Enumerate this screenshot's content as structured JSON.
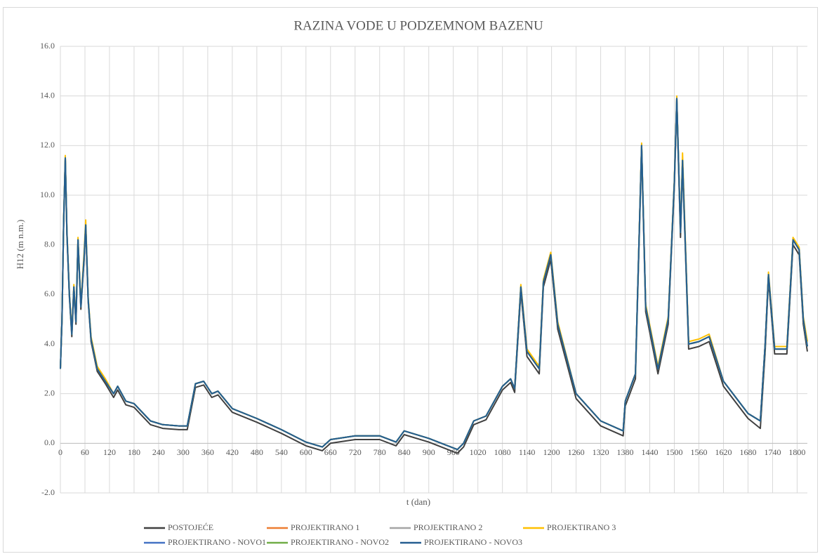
{
  "chart_data": {
    "type": "line",
    "title": "RAZINA VODE U PODZEMNOM BAZENU",
    "x_label": "t (dan)",
    "y_label": "H12 (m n.m.)",
    "xlim": [
      0,
      1825
    ],
    "ylim": [
      -2,
      16
    ],
    "xticks": [
      0,
      60,
      120,
      180,
      240,
      300,
      360,
      420,
      480,
      540,
      600,
      660,
      720,
      780,
      840,
      900,
      960,
      1020,
      1080,
      1140,
      1200,
      1260,
      1320,
      1380,
      1440,
      1500,
      1560,
      1620,
      1680,
      1740,
      1800
    ],
    "yticks": [
      {
        "value": -2,
        "label": "-2.0"
      },
      {
        "value": 0,
        "label": "0.0"
      },
      {
        "value": 2,
        "label": "2.0"
      },
      {
        "value": 4,
        "label": "4.0"
      },
      {
        "value": 6,
        "label": "6.0"
      },
      {
        "value": 8,
        "label": "8.0"
      },
      {
        "value": 10,
        "label": "10.0"
      },
      {
        "value": 12,
        "label": "12.0"
      },
      {
        "value": 14,
        "label": "14.0"
      },
      {
        "value": 16,
        "label": "16.0"
      }
    ],
    "grid": true,
    "legend": "bottom",
    "x": [
      0,
      4,
      8,
      12,
      16,
      22,
      28,
      33,
      38,
      43,
      50,
      58,
      62,
      68,
      75,
      90,
      110,
      130,
      140,
      160,
      180,
      220,
      250,
      290,
      310,
      330,
      350,
      370,
      385,
      420,
      480,
      540,
      600,
      640,
      660,
      720,
      780,
      820,
      840,
      900,
      970,
      985,
      1010,
      1040,
      1080,
      1100,
      1110,
      1125,
      1140,
      1170,
      1180,
      1198,
      1215,
      1260,
      1320,
      1375,
      1380,
      1405,
      1420,
      1430,
      1460,
      1485,
      1500,
      1506,
      1515,
      1520,
      1535,
      1560,
      1585,
      1620,
      1680,
      1710,
      1722,
      1730,
      1745,
      1775,
      1790,
      1805,
      1815,
      1825
    ],
    "series": [
      {
        "name": "POSTOJEĆE",
        "color": "#404040",
        "values": [
          3.0,
          4.9,
          8.9,
          11.4,
          8.4,
          5.9,
          4.3,
          6.2,
          4.8,
          8.1,
          5.4,
          7.4,
          8.7,
          5.7,
          4.1,
          2.9,
          2.4,
          1.85,
          2.15,
          1.55,
          1.45,
          0.75,
          0.6,
          0.55,
          0.55,
          2.25,
          2.35,
          1.85,
          1.95,
          1.25,
          0.85,
          0.4,
          -0.1,
          -0.3,
          0.0,
          0.15,
          0.15,
          -0.1,
          0.35,
          0.05,
          -0.4,
          -0.15,
          0.75,
          0.95,
          2.15,
          2.45,
          2.05,
          6.1,
          3.5,
          2.8,
          6.3,
          7.4,
          4.6,
          1.8,
          0.7,
          0.3,
          1.5,
          2.6,
          11.8,
          5.3,
          2.8,
          4.8,
          10.3,
          13.7,
          8.3,
          11.2,
          3.8,
          3.9,
          4.1,
          2.3,
          1.0,
          0.6,
          3.7,
          6.6,
          3.6,
          3.6,
          8.0,
          7.6,
          4.8,
          3.7
        ]
      },
      {
        "name": "PROJEKTIRANO 1",
        "color": "#ed7d31",
        "values": [
          3.0,
          5.0,
          9.0,
          11.5,
          8.5,
          6.0,
          4.4,
          6.3,
          4.9,
          8.2,
          5.5,
          7.5,
          8.8,
          5.8,
          4.2,
          3.0,
          2.5,
          2.0,
          2.3,
          1.7,
          1.6,
          0.9,
          0.75,
          0.7,
          0.7,
          2.4,
          2.5,
          2.0,
          2.1,
          1.4,
          1.0,
          0.55,
          0.05,
          -0.15,
          0.15,
          0.3,
          0.3,
          0.05,
          0.5,
          0.2,
          -0.25,
          0.0,
          0.9,
          1.1,
          2.3,
          2.6,
          2.2,
          6.3,
          3.7,
          3.0,
          6.5,
          7.6,
          4.8,
          2.0,
          0.9,
          0.5,
          1.7,
          2.8,
          12.0,
          5.5,
          3.0,
          5.0,
          10.5,
          13.9,
          8.5,
          11.4,
          4.0,
          4.1,
          4.3,
          2.5,
          1.2,
          0.9,
          4.0,
          6.8,
          3.8,
          3.8,
          8.2,
          7.8,
          5.0,
          3.9
        ]
      },
      {
        "name": "PROJEKTIRANO 2",
        "color": "#a5a5a5",
        "values": [
          3.0,
          5.0,
          9.0,
          11.5,
          8.5,
          6.0,
          4.4,
          6.3,
          4.9,
          8.2,
          5.5,
          7.5,
          8.8,
          5.8,
          4.2,
          3.0,
          2.5,
          2.0,
          2.3,
          1.7,
          1.6,
          0.9,
          0.75,
          0.7,
          0.7,
          2.4,
          2.5,
          2.0,
          2.1,
          1.4,
          1.0,
          0.55,
          0.05,
          -0.15,
          0.15,
          0.3,
          0.3,
          0.05,
          0.5,
          0.2,
          -0.25,
          0.0,
          0.9,
          1.1,
          2.3,
          2.6,
          2.2,
          6.3,
          3.7,
          3.0,
          6.5,
          7.6,
          4.8,
          2.0,
          0.9,
          0.5,
          1.7,
          2.8,
          12.0,
          5.5,
          3.0,
          5.0,
          10.5,
          13.9,
          8.5,
          11.4,
          4.0,
          4.1,
          4.3,
          2.5,
          1.2,
          0.9,
          4.0,
          6.8,
          3.8,
          3.8,
          8.2,
          7.8,
          5.0,
          3.9
        ]
      },
      {
        "name": "PROJEKTIRANO 3",
        "color": "#ffc000",
        "values": [
          3.0,
          5.0,
          9.1,
          11.6,
          8.6,
          6.1,
          4.5,
          6.4,
          5.0,
          8.3,
          5.6,
          7.7,
          9.0,
          5.9,
          4.3,
          3.1,
          2.6,
          2.0,
          2.3,
          1.7,
          1.6,
          0.9,
          0.75,
          0.7,
          0.7,
          2.4,
          2.5,
          2.0,
          2.1,
          1.4,
          1.0,
          0.55,
          0.05,
          -0.15,
          0.15,
          0.3,
          0.3,
          0.05,
          0.5,
          0.2,
          -0.25,
          0.0,
          0.9,
          1.1,
          2.3,
          2.6,
          2.2,
          6.4,
          3.8,
          3.1,
          6.6,
          7.7,
          4.9,
          2.0,
          0.9,
          0.5,
          1.7,
          2.8,
          12.1,
          5.6,
          3.1,
          5.1,
          10.6,
          14.0,
          8.6,
          11.7,
          4.1,
          4.2,
          4.4,
          2.5,
          1.2,
          0.9,
          4.0,
          6.9,
          3.9,
          3.9,
          8.3,
          7.9,
          5.1,
          4.1
        ]
      },
      {
        "name": "PROJEKTIRANO - NOVO1",
        "color": "#4472c4",
        "values": [
          3.0,
          5.0,
          9.0,
          11.5,
          8.5,
          6.0,
          4.4,
          6.3,
          4.9,
          8.2,
          5.5,
          7.5,
          8.8,
          5.8,
          4.2,
          3.0,
          2.5,
          2.0,
          2.3,
          1.7,
          1.6,
          0.9,
          0.75,
          0.7,
          0.7,
          2.4,
          2.5,
          2.0,
          2.1,
          1.4,
          1.0,
          0.55,
          0.05,
          -0.15,
          0.15,
          0.3,
          0.3,
          0.05,
          0.5,
          0.2,
          -0.25,
          0.0,
          0.9,
          1.1,
          2.3,
          2.6,
          2.2,
          6.3,
          3.7,
          3.0,
          6.5,
          7.6,
          4.8,
          2.0,
          0.9,
          0.5,
          1.7,
          2.8,
          12.0,
          5.5,
          3.0,
          5.0,
          10.5,
          13.9,
          8.5,
          11.4,
          4.0,
          4.1,
          4.3,
          2.5,
          1.2,
          0.9,
          4.0,
          6.8,
          3.8,
          3.8,
          8.2,
          7.8,
          5.0,
          3.9
        ]
      },
      {
        "name": "PROJEKTIRANO - NOVO2",
        "color": "#70ad47",
        "values": [
          3.0,
          5.0,
          9.0,
          11.5,
          8.5,
          6.0,
          4.4,
          6.3,
          4.9,
          8.2,
          5.5,
          7.5,
          8.8,
          5.8,
          4.2,
          3.0,
          2.5,
          2.0,
          2.3,
          1.7,
          1.6,
          0.9,
          0.75,
          0.7,
          0.7,
          2.4,
          2.5,
          2.0,
          2.1,
          1.4,
          1.0,
          0.55,
          0.05,
          -0.15,
          0.15,
          0.3,
          0.3,
          0.05,
          0.5,
          0.2,
          -0.25,
          0.0,
          0.9,
          1.1,
          2.3,
          2.6,
          2.2,
          6.3,
          3.7,
          3.0,
          6.5,
          7.6,
          4.8,
          2.0,
          0.9,
          0.5,
          1.7,
          2.8,
          12.0,
          5.5,
          3.0,
          5.0,
          10.5,
          13.9,
          8.5,
          11.4,
          4.0,
          4.1,
          4.3,
          2.5,
          1.2,
          0.9,
          4.0,
          6.8,
          3.8,
          3.8,
          8.2,
          7.8,
          5.0,
          3.9
        ]
      },
      {
        "name": "PROJEKTIRANO - NOVO3",
        "color": "#255e91",
        "values": [
          3.0,
          5.0,
          9.0,
          11.5,
          8.5,
          6.0,
          4.4,
          6.3,
          4.9,
          8.2,
          5.5,
          7.5,
          8.8,
          5.8,
          4.2,
          3.0,
          2.5,
          2.0,
          2.3,
          1.7,
          1.6,
          0.9,
          0.75,
          0.7,
          0.7,
          2.4,
          2.5,
          2.0,
          2.1,
          1.4,
          1.0,
          0.55,
          0.05,
          -0.15,
          0.15,
          0.3,
          0.3,
          0.05,
          0.5,
          0.2,
          -0.25,
          0.0,
          0.9,
          1.1,
          2.3,
          2.6,
          2.2,
          6.3,
          3.7,
          3.0,
          6.5,
          7.6,
          4.8,
          2.0,
          0.9,
          0.5,
          1.7,
          2.8,
          12.0,
          5.5,
          3.0,
          5.0,
          10.5,
          13.9,
          8.5,
          11.4,
          4.0,
          4.1,
          4.3,
          2.5,
          1.2,
          0.9,
          4.0,
          6.8,
          3.8,
          3.8,
          8.2,
          7.8,
          5.0,
          3.9
        ]
      }
    ]
  }
}
